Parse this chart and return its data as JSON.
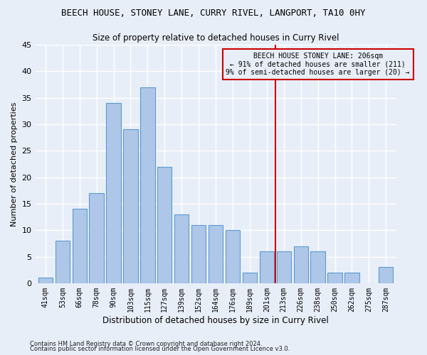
{
  "title": "BEECH HOUSE, STONEY LANE, CURRY RIVEL, LANGPORT, TA10 0HY",
  "subtitle": "Size of property relative to detached houses in Curry Rivel",
  "xlabel": "Distribution of detached houses by size in Curry Rivel",
  "ylabel": "Number of detached properties",
  "footnote1": "Contains HM Land Registry data © Crown copyright and database right 2024.",
  "footnote2": "Contains public sector information licensed under the Open Government Licence v3.0.",
  "categories": [
    "41sqm",
    "53sqm",
    "66sqm",
    "78sqm",
    "90sqm",
    "103sqm",
    "115sqm",
    "127sqm",
    "139sqm",
    "152sqm",
    "164sqm",
    "176sqm",
    "189sqm",
    "201sqm",
    "213sqm",
    "226sqm",
    "238sqm",
    "250sqm",
    "262sqm",
    "275sqm",
    "287sqm"
  ],
  "values": [
    1,
    8,
    14,
    17,
    34,
    29,
    37,
    22,
    13,
    11,
    11,
    10,
    2,
    6,
    6,
    7,
    6,
    2,
    2,
    0,
    3
  ],
  "bar_color": "#aec6e8",
  "bar_edge_color": "#5b9bd5",
  "vline_x": 13.5,
  "vline_color": "#cc0000",
  "annotation_title": "BEECH HOUSE STONEY LANE: 206sqm",
  "annotation_line1": "← 91% of detached houses are smaller (211)",
  "annotation_line2": "9% of semi-detached houses are larger (20) →",
  "annotation_box_color": "#cc0000",
  "background_color": "#e8eef8",
  "grid_color": "#ffffff",
  "ylim": [
    0,
    45
  ],
  "yticks": [
    0,
    5,
    10,
    15,
    20,
    25,
    30,
    35,
    40,
    45
  ]
}
